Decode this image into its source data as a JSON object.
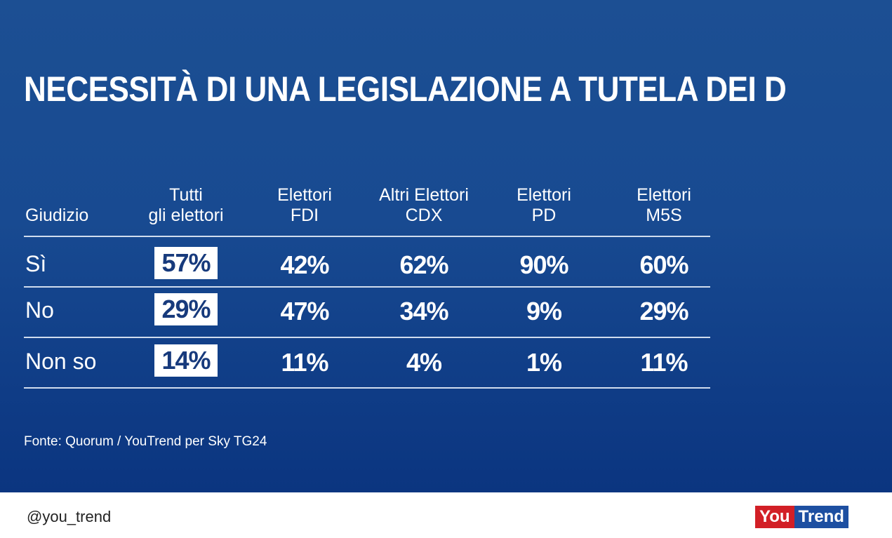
{
  "title": "NECESSITÀ DI UNA LEGISLAZIONE A TUTELA DEI DIRITTI LGBTQ+",
  "source": "Fonte: Quorum / YouTrend per Sky TG24",
  "footer": {
    "handle": "@you_trend",
    "logo_you": "You",
    "logo_trend": "Trend"
  },
  "colors": {
    "background": "#184a91",
    "highlight_box": "#ffffff",
    "highlight_text": "#173a7c",
    "logo_red": "#d21f26",
    "logo_blue": "#1d4fa1"
  },
  "chart_data": {
    "type": "table",
    "columns": [
      "Giudizio",
      "Tutti\ngli elettori",
      "Elettori\nFDI",
      "Altri Elettori\nCDX",
      "Elettori\nPD",
      "Elettori\nM5S"
    ],
    "rows": [
      {
        "label": "Sì",
        "values": [
          "57%",
          "42%",
          "62%",
          "90%",
          "60%"
        ]
      },
      {
        "label": "No",
        "values": [
          "29%",
          "47%",
          "34%",
          "9%",
          "29%"
        ]
      },
      {
        "label": "Non so",
        "values": [
          "14%",
          "11%",
          "4%",
          "1%",
          "11%"
        ]
      }
    ],
    "highlighted_column": 1
  }
}
